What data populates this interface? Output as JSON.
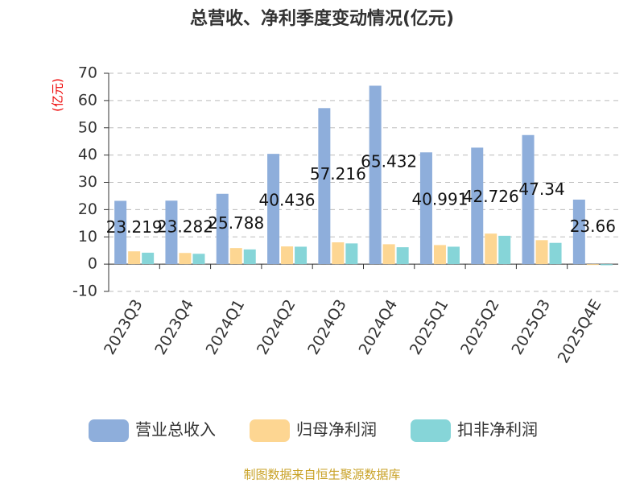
{
  "chart_data": {
    "type": "bar",
    "title": "总营收、净利季度变动情况(亿元)",
    "y_label": "(亿元)",
    "source": "制图数据来自恒生聚源数据库",
    "categories": [
      "2023Q3",
      "2023Q4",
      "2024Q1",
      "2024Q2",
      "2024Q3",
      "2024Q4",
      "2025Q1",
      "2025Q2",
      "2025Q3",
      "2025Q4E"
    ],
    "series": [
      {
        "name": "营业总收入",
        "color": "#8eaedb",
        "values": [
          23.219,
          23.282,
          25.788,
          40.436,
          57.216,
          65.432,
          40.991,
          42.726,
          47.34,
          23.66
        ],
        "show_labels": true
      },
      {
        "name": "归母净利润",
        "color": "#fdd692",
        "values": [
          4.7,
          4.1,
          5.9,
          6.5,
          8.0,
          7.3,
          7.0,
          11.2,
          8.8,
          -0.3
        ]
      },
      {
        "name": "扣非净利润",
        "color": "#86d5d8",
        "values": [
          4.2,
          3.8,
          5.4,
          6.4,
          7.6,
          6.2,
          6.4,
          10.4,
          7.8,
          -0.4
        ]
      }
    ],
    "ylim": [
      -10,
      70
    ],
    "yticks": [
      -10,
      0,
      10,
      20,
      30,
      40,
      50,
      60,
      70
    ],
    "grid": true
  }
}
